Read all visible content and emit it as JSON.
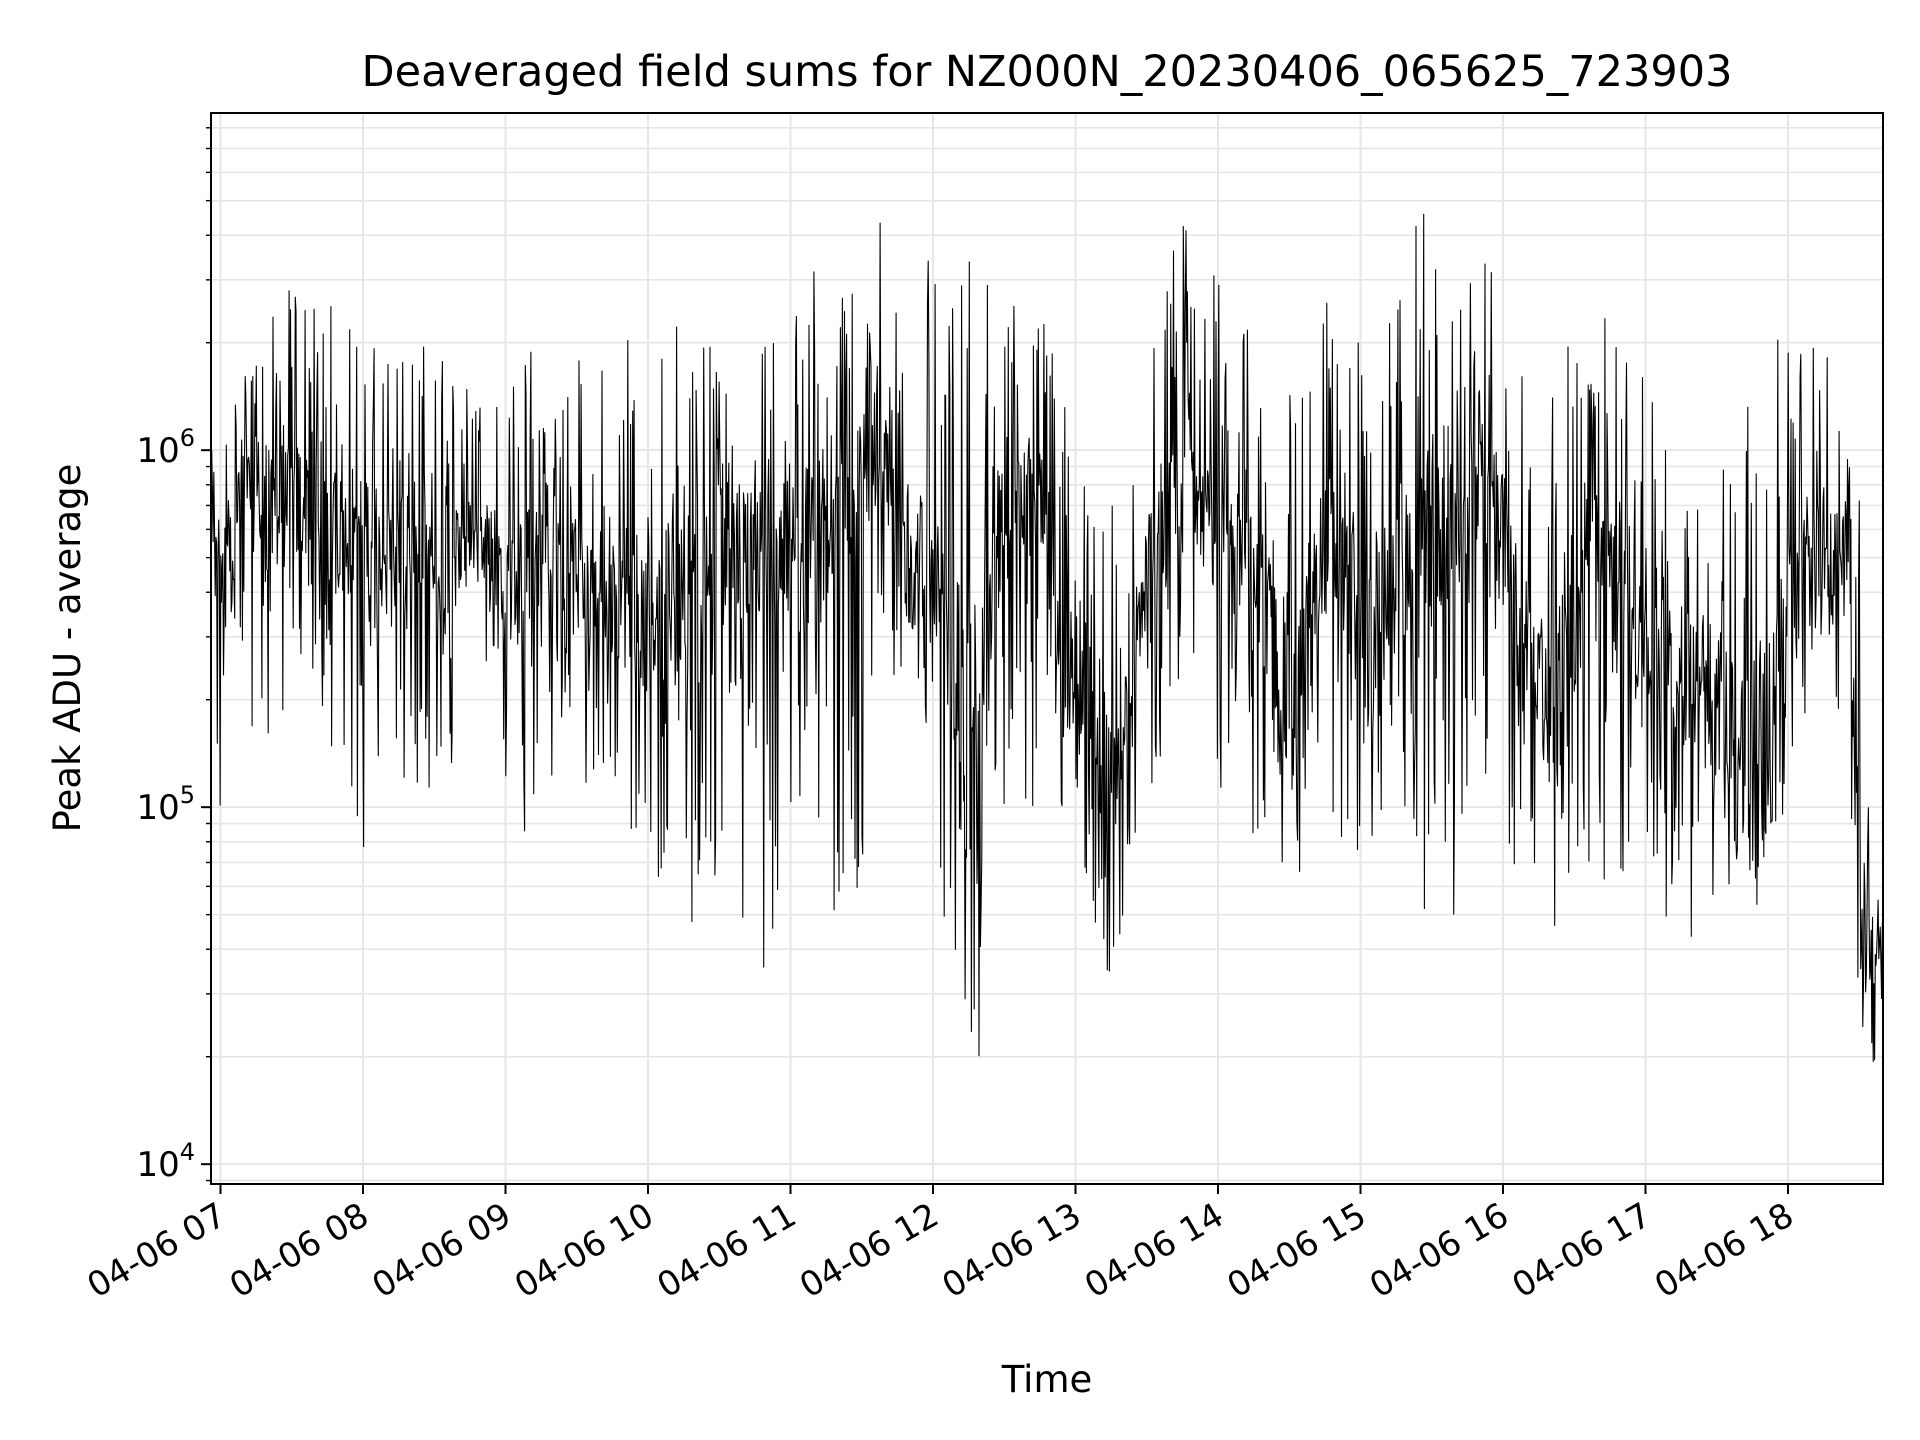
{
  "chart_data": {
    "type": "line",
    "title": "Deaveraged field sums for NZ000N_20230406_065625_723903",
    "xlabel": "Time",
    "ylabel": "Peak ADU - average",
    "xscale": "time",
    "yscale": "log",
    "xlim": [
      "2023-04-06 06:56",
      "2023-04-06 18:40"
    ],
    "ylim": [
      8800,
      8800000
    ],
    "grid": true,
    "line_color": "#000000",
    "grid_color": "#e6e6e6",
    "x_ticks": [
      {
        "value": "2023-04-06 07:00",
        "label": "04-06 07"
      },
      {
        "value": "2023-04-06 08:00",
        "label": "04-06 08"
      },
      {
        "value": "2023-04-06 09:00",
        "label": "04-06 09"
      },
      {
        "value": "2023-04-06 10:00",
        "label": "04-06 10"
      },
      {
        "value": "2023-04-06 11:00",
        "label": "04-06 11"
      },
      {
        "value": "2023-04-06 12:00",
        "label": "04-06 12"
      },
      {
        "value": "2023-04-06 13:00",
        "label": "04-06 13"
      },
      {
        "value": "2023-04-06 14:00",
        "label": "04-06 14"
      },
      {
        "value": "2023-04-06 15:00",
        "label": "04-06 15"
      },
      {
        "value": "2023-04-06 16:00",
        "label": "04-06 16"
      },
      {
        "value": "2023-04-06 17:00",
        "label": "04-06 17"
      },
      {
        "value": "2023-04-06 18:00",
        "label": "04-06 18"
      }
    ],
    "y_ticks": [
      {
        "value": 10000,
        "base": "10",
        "exp": "4"
      },
      {
        "value": 100000,
        "base": "10",
        "exp": "5"
      },
      {
        "value": 1000000,
        "base": "10",
        "exp": "6"
      }
    ],
    "series": [
      {
        "x": [
          "2023-04-06 06:56",
          "2023-04-06 07:00",
          "2023-04-06 07:05",
          "2023-04-06 07:10",
          "2023-04-06 07:15",
          "2023-04-06 07:20",
          "2023-04-06 07:30",
          "2023-04-06 07:40",
          "2023-04-06 07:50",
          "2023-04-06 08:00",
          "2023-04-06 08:10",
          "2023-04-06 08:20",
          "2023-04-06 08:30",
          "2023-04-06 08:40",
          "2023-04-06 08:50",
          "2023-04-06 09:00",
          "2023-04-06 09:10",
          "2023-04-06 09:20",
          "2023-04-06 09:30",
          "2023-04-06 09:40",
          "2023-04-06 09:50",
          "2023-04-06 10:00",
          "2023-04-06 10:10",
          "2023-04-06 10:20",
          "2023-04-06 10:30",
          "2023-04-06 10:40",
          "2023-04-06 10:50",
          "2023-04-06 11:00",
          "2023-04-06 11:10",
          "2023-04-06 11:20",
          "2023-04-06 11:30",
          "2023-04-06 11:36",
          "2023-04-06 11:45",
          "2023-04-06 11:55",
          "2023-04-06 12:05",
          "2023-04-06 12:15",
          "2023-04-06 12:20",
          "2023-04-06 12:25",
          "2023-04-06 12:35",
          "2023-04-06 12:45",
          "2023-04-06 12:55",
          "2023-04-06 13:05",
          "2023-04-06 13:12",
          "2023-04-06 13:20",
          "2023-04-06 13:30",
          "2023-04-06 13:40",
          "2023-04-06 13:48",
          "2023-04-06 13:55",
          "2023-04-06 14:05",
          "2023-04-06 14:15",
          "2023-04-06 14:25",
          "2023-04-06 14:35",
          "2023-04-06 14:45",
          "2023-04-06 14:55",
          "2023-04-06 15:05",
          "2023-04-06 15:15",
          "2023-04-06 15:25",
          "2023-04-06 15:35",
          "2023-04-06 15:45",
          "2023-04-06 15:55",
          "2023-04-06 16:05",
          "2023-04-06 16:15",
          "2023-04-06 16:25",
          "2023-04-06 16:35",
          "2023-04-06 16:45",
          "2023-04-06 16:55",
          "2023-04-06 17:05",
          "2023-04-06 17:15",
          "2023-04-06 17:25",
          "2023-04-06 17:35",
          "2023-04-06 17:45",
          "2023-04-06 17:55",
          "2023-04-06 18:05",
          "2023-04-06 18:15",
          "2023-04-06 18:25",
          "2023-04-06 18:30",
          "2023-04-06 18:35",
          "2023-04-06 18:40"
        ],
        "values": [
          450000,
          520000,
          480000,
          900000,
          650000,
          620000,
          700000,
          780000,
          550000,
          650000,
          480000,
          550000,
          460000,
          520000,
          580000,
          450000,
          440000,
          420000,
          440000,
          420000,
          410000,
          350000,
          330000,
          480000,
          520000,
          560000,
          470000,
          560000,
          540000,
          560000,
          800000,
          1100000,
          600000,
          450000,
          320000,
          140000,
          110000,
          600000,
          720000,
          680000,
          310000,
          200000,
          130000,
          140000,
          420000,
          520000,
          980000,
          700000,
          480000,
          520000,
          230000,
          190000,
          560000,
          420000,
          260000,
          480000,
          520000,
          580000,
          700000,
          780000,
          350000,
          200000,
          190000,
          620000,
          480000,
          380000,
          260000,
          230000,
          220000,
          160000,
          110000,
          210000,
          520000,
          580000,
          520000,
          45000,
          40000,
          42000
        ],
        "v_min": [
          300000,
          60000,
          190000,
          150000,
          140000,
          75000,
          220000,
          150000,
          60000,
          55000,
          110000,
          100000,
          80000,
          90000,
          100000,
          100000,
          60000,
          85000,
          95000,
          90000,
          70000,
          60000,
          42000,
          25000,
          45000,
          25000,
          26000,
          60000,
          65000,
          30000,
          28000,
          200000,
          200000,
          180000,
          38000,
          18000,
          14000,
          60000,
          95000,
          70000,
          70000,
          50000,
          25000,
          40000,
          75000,
          150000,
          170000,
          150000,
          55000,
          60000,
          65000,
          50000,
          60000,
          53000,
          60000,
          140000,
          35000,
          28000,
          55000,
          110000,
          50000,
          32000,
          35000,
          50000,
          42000,
          45000,
          36000,
          38000,
          32000,
          40000,
          45000,
          50000,
          150000,
          210000,
          130000,
          17000,
          14000,
          30000
        ],
        "v_max": [
          1100000,
          1000000,
          1700000,
          1900000,
          2100000,
          2700000,
          3400000,
          3100000,
          3000000,
          2500000,
          2400000,
          2600000,
          2300000,
          1900000,
          1600000,
          1700000,
          2500000,
          2000000,
          2200000,
          2300000,
          2600000,
          2400000,
          2900000,
          3100000,
          3200000,
          3500000,
          2400000,
          2800000,
          4400000,
          3100000,
          5900000,
          6400000,
          3300000,
          5200000,
          2900000,
          4800000,
          5000000,
          5500000,
          3500000,
          2800000,
          1900000,
          2200000,
          1100000,
          1000000,
          2300000,
          4600000,
          5800000,
          4400000,
          2900000,
          2600000,
          2100000,
          2400000,
          3400000,
          2200000,
          2900000,
          2900000,
          6500000,
          3400000,
          4400000,
          4000000,
          3400000,
          1600000,
          2700000,
          2000000,
          3600000,
          2200000,
          1500000,
          1300000,
          900000,
          1600000,
          2300000,
          3000000,
          2300000,
          2600000,
          1300000,
          1000000,
          65000,
          60000
        ]
      }
    ]
  }
}
